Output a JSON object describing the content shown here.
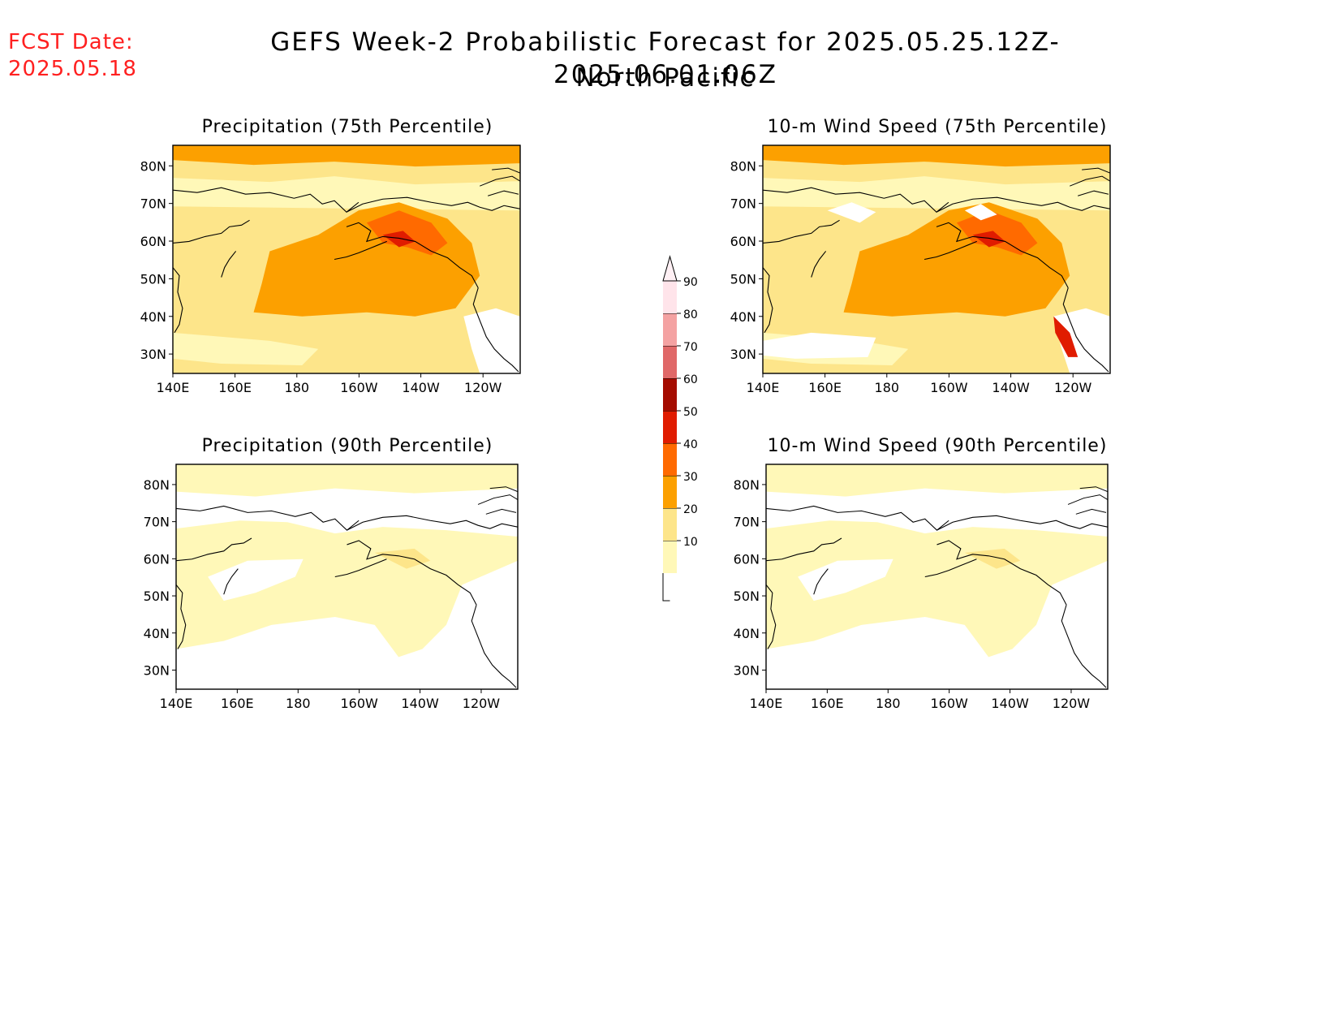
{
  "header": {
    "fcst_label": "FCST Date:",
    "fcst_date": "2025.05.18",
    "title": "GEFS Week-2 Probabilistic Forecast for 2025.05.25.12Z-2025.06.01.06Z",
    "region": "North Pacific"
  },
  "axes": {
    "lat_ticks": [
      "80N",
      "70N",
      "60N",
      "50N",
      "40N",
      "30N"
    ],
    "lon_ticks": [
      "140E",
      "160E",
      "180",
      "160W",
      "140W",
      "120W"
    ]
  },
  "panels": [
    {
      "id": "precip75",
      "title": "Precipitation (75th Percentile)",
      "level": "high"
    },
    {
      "id": "wind75",
      "title": "10-m Wind Speed (75th Percentile)",
      "level": "high"
    },
    {
      "id": "precip90",
      "title": "Precipitation (90th Percentile)",
      "level": "low"
    },
    {
      "id": "wind90",
      "title": "10-m Wind Speed (90th Percentile)",
      "level": "low"
    }
  ],
  "colorbar": {
    "levels": [
      "10",
      "20",
      "30",
      "40",
      "50",
      "60",
      "70",
      "80",
      "90"
    ],
    "colors": [
      "#fff8b8",
      "#fde58a",
      "#fca000",
      "#ff6a00",
      "#e01c00",
      "#a50c00",
      "#e06868",
      "#f4a2a2",
      "#ffe4ea"
    ]
  }
}
